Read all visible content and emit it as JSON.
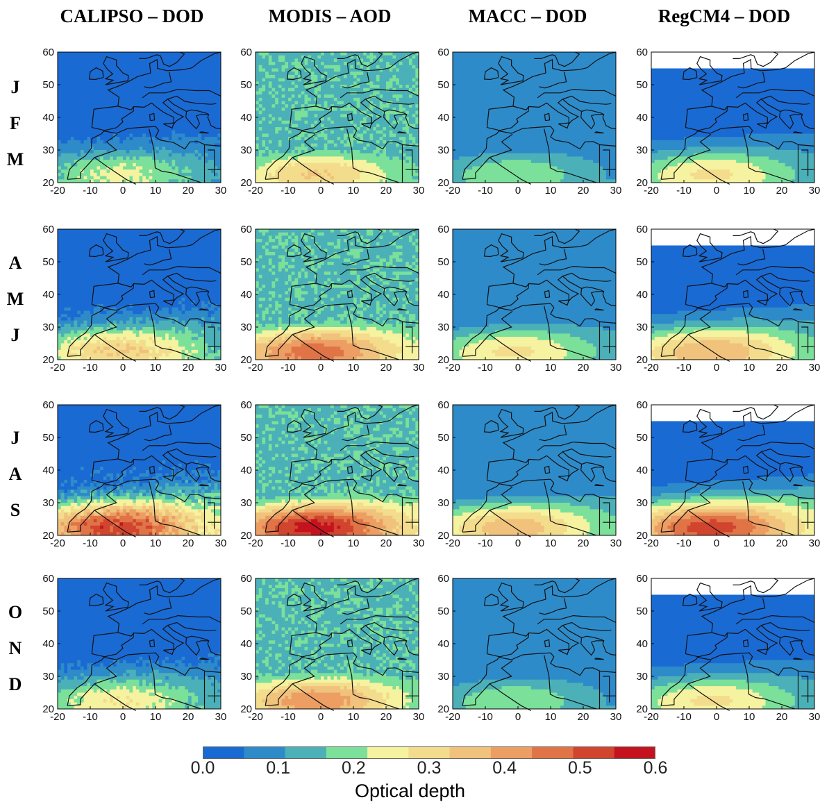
{
  "columns": [
    {
      "title": "CALIPSO – DOD",
      "source": "calipso"
    },
    {
      "title": "MODIS – AOD",
      "source": "modis"
    },
    {
      "title": "MACC – DOD",
      "source": "macc"
    },
    {
      "title": "RegCM4 – DOD",
      "source": "regcm"
    }
  ],
  "seasons": [
    {
      "letters": [
        "J",
        "F",
        "M"
      ]
    },
    {
      "letters": [
        "A",
        "M",
        "J"
      ]
    },
    {
      "letters": [
        "J",
        "A",
        "S"
      ]
    },
    {
      "letters": [
        "O",
        "N",
        "D"
      ]
    }
  ],
  "colorbar": {
    "label": "Optical depth",
    "ticks": [
      "0.0",
      "0.1",
      "0.2",
      "0.3",
      "0.4",
      "0.5",
      "0.6"
    ],
    "range": [
      0,
      0.6
    ],
    "colors": [
      "#1a6ad3",
      "#2e8bc9",
      "#4bb0b8",
      "#7ae09a",
      "#f5f2a0",
      "#f3dc8c",
      "#f0c27c",
      "#ec9e63",
      "#e07446",
      "#d1442e",
      "#c4131f"
    ]
  },
  "chart_data": [
    {
      "type": "heatmap",
      "xlim": [
        -20,
        30
      ],
      "ylim": [
        20,
        60
      ],
      "xticks": [
        "-20",
        "-10",
        "0",
        "10",
        "20",
        "30"
      ],
      "yticks": [
        "20",
        "30",
        "40",
        "50",
        "60"
      ],
      "panels_note": "4x4 grid of maps: rows = seasons JFM/AMJ/JAS/OND, columns = CALIPSO DOD, MODIS AOD, MACC DOD, RegCM4 DOD",
      "approx_max_optical_depth": [
        {
          "season": "JFM",
          "calipso": 0.25,
          "modis": 0.35,
          "macc": 0.22,
          "regcm": 0.3
        },
        {
          "season": "AMJ",
          "calipso": 0.35,
          "modis": 0.5,
          "macc": 0.3,
          "regcm": 0.4
        },
        {
          "season": "JAS",
          "calipso": 0.55,
          "modis": 0.6,
          "macc": 0.38,
          "regcm": 0.55
        },
        {
          "season": "OND",
          "calipso": 0.28,
          "modis": 0.45,
          "macc": 0.22,
          "regcm": 0.3
        }
      ]
    }
  ]
}
